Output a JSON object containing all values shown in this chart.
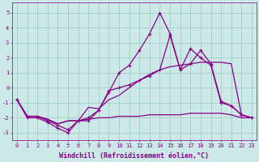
{
  "title": "",
  "xlabel": "Windchill (Refroidissement éolien,°C)",
  "ylabel": "",
  "bg_color": "#cce8e8",
  "grid_color": "#99ccbb",
  "line_color": "#880088",
  "xlim": [
    -0.5,
    23.5
  ],
  "ylim": [
    -3.5,
    5.7
  ],
  "yticks": [
    -3,
    -2,
    -1,
    0,
    1,
    2,
    3,
    4,
    5
  ],
  "xticks": [
    0,
    1,
    2,
    3,
    4,
    5,
    6,
    7,
    8,
    9,
    10,
    11,
    12,
    13,
    14,
    15,
    16,
    17,
    18,
    19,
    20,
    21,
    22,
    23
  ],
  "series": [
    {
      "x": [
        0,
        1,
        2,
        3,
        4,
        5,
        6,
        7,
        8,
        9,
        10,
        11,
        12,
        13,
        14,
        15,
        16,
        17,
        18,
        19,
        20,
        21,
        22,
        23
      ],
      "y": [
        -0.8,
        -2.0,
        -2.0,
        -2.3,
        -2.7,
        -3.0,
        -2.2,
        -2.2,
        -1.5,
        -0.3,
        1.0,
        1.5,
        2.5,
        3.6,
        5.0,
        3.6,
        1.2,
        2.6,
        2.0,
        1.5,
        -1.0,
        -1.2,
        -1.8,
        -2.0
      ],
      "marker": "+"
    },
    {
      "x": [
        0,
        1,
        2,
        3,
        4,
        5,
        6,
        7,
        8,
        9,
        10,
        11,
        12,
        13,
        14,
        15,
        16,
        17,
        18,
        19,
        20,
        21,
        22,
        23
      ],
      "y": [
        -0.8,
        -1.9,
        -1.9,
        -2.1,
        -2.4,
        -2.2,
        -2.2,
        -2.1,
        -2.0,
        -2.0,
        -1.9,
        -1.9,
        -1.9,
        -1.8,
        -1.8,
        -1.8,
        -1.8,
        -1.7,
        -1.7,
        -1.7,
        -1.7,
        -1.8,
        -2.0,
        -2.0
      ],
      "marker": null
    },
    {
      "x": [
        0,
        1,
        2,
        3,
        4,
        5,
        6,
        7,
        8,
        9,
        10,
        11,
        12,
        13,
        14,
        15,
        16,
        17,
        18,
        19,
        20,
        21,
        22,
        23
      ],
      "y": [
        -0.8,
        -1.9,
        -1.9,
        -2.1,
        -2.4,
        -2.2,
        -2.2,
        -1.3,
        -1.4,
        -0.8,
        -0.5,
        0.0,
        0.5,
        0.9,
        1.2,
        1.4,
        1.5,
        1.6,
        1.7,
        1.7,
        1.7,
        1.6,
        -1.8,
        -2.0
      ],
      "marker": null
    },
    {
      "x": [
        0,
        1,
        2,
        3,
        4,
        5,
        6,
        7,
        8,
        9,
        10,
        11,
        12,
        13,
        14,
        15,
        16,
        17,
        18,
        19,
        20,
        21,
        22,
        23
      ],
      "y": [
        -0.8,
        -1.9,
        -1.9,
        -2.2,
        -2.5,
        -2.8,
        -2.2,
        -2.0,
        -1.5,
        -0.2,
        0.0,
        0.2,
        0.5,
        0.8,
        1.2,
        3.5,
        1.2,
        1.6,
        2.5,
        1.6,
        -0.9,
        -1.2,
        -1.8,
        -2.0
      ],
      "marker": "+"
    }
  ],
  "tick_fontsize": 5.0,
  "xlabel_fontsize": 6.0,
  "line_width": 0.9,
  "marker_size": 2.5
}
